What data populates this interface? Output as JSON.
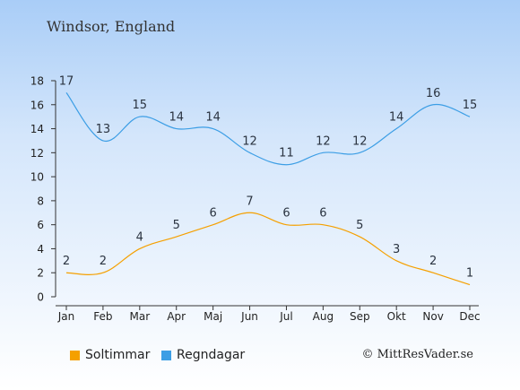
{
  "title": "Windsor, England",
  "credit": "© MittResVader.se",
  "chart_data": {
    "type": "line",
    "categories": [
      "Jan",
      "Feb",
      "Mar",
      "Apr",
      "Maj",
      "Jun",
      "Jul",
      "Aug",
      "Sep",
      "Okt",
      "Nov",
      "Dec"
    ],
    "series": [
      {
        "name": "Soltimmar",
        "color": "#f5a000",
        "values": [
          2,
          2,
          4,
          5,
          6,
          7,
          6,
          6,
          5,
          3,
          2,
          1
        ]
      },
      {
        "name": "Regndagar",
        "color": "#3c9ee5",
        "values": [
          17,
          13,
          15,
          14,
          14,
          12,
          11,
          12,
          12,
          14,
          16,
          15
        ]
      }
    ],
    "yticks": [
      0,
      2,
      4,
      6,
      8,
      10,
      12,
      14,
      16,
      18
    ],
    "ylim": [
      0,
      18
    ],
    "grid": false,
    "legend_position": "bottom-left"
  }
}
